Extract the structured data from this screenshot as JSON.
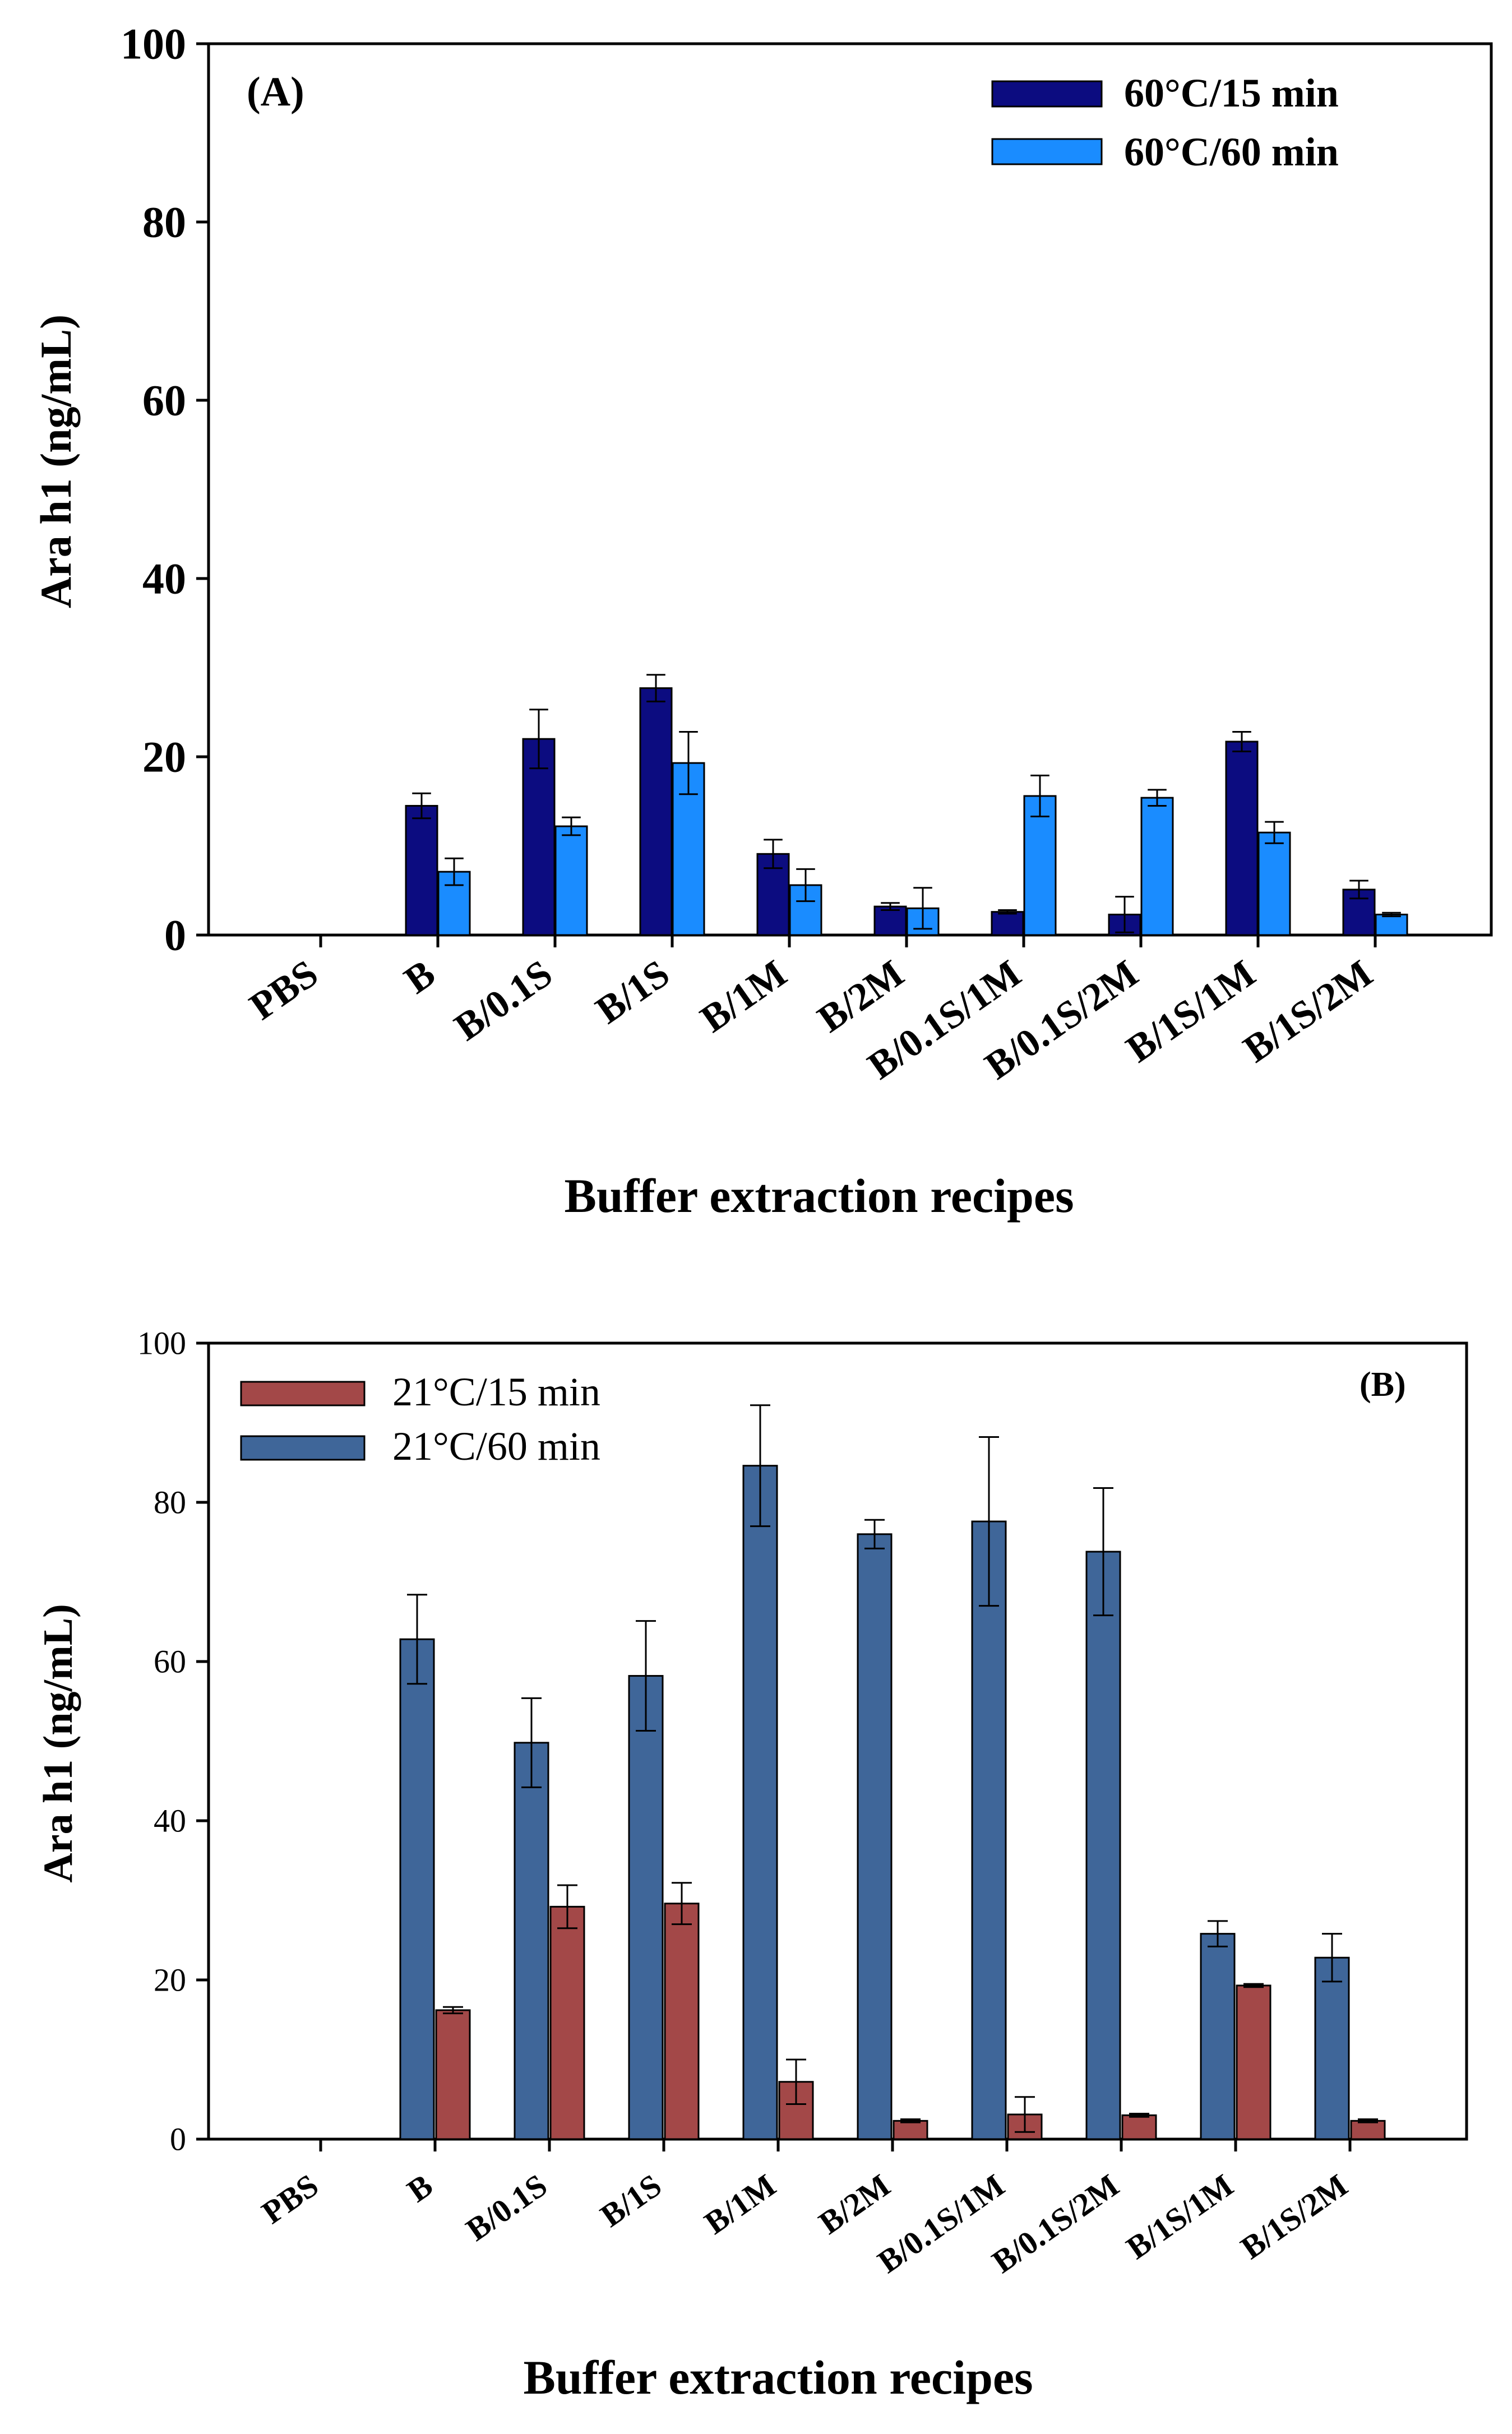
{
  "chart_data": [
    {
      "type": "bar",
      "panel_label": "(A)",
      "categories": [
        "PBS",
        "B",
        "B/0.1S",
        "B/1S",
        "B/1M",
        "B/2M",
        "B/0.1S/1M",
        "B/0.1S/2M",
        "B/1S/1M",
        "B/1S/2M"
      ],
      "series": [
        {
          "name": "60°C/15 min",
          "color": "#0c0c80",
          "values": [
            0,
            14.5,
            22.0,
            27.7,
            9.1,
            3.2,
            2.6,
            2.3,
            21.7,
            5.1
          ],
          "errors": [
            0,
            1.4,
            3.3,
            1.5,
            1.6,
            0.4,
            0.2,
            2.0,
            1.1,
            1.0
          ]
        },
        {
          "name": "60°C/60 min",
          "color": "#1a8cff",
          "values": [
            0,
            7.1,
            12.2,
            19.3,
            5.6,
            3.0,
            15.6,
            15.4,
            11.5,
            2.3
          ],
          "errors": [
            0,
            1.5,
            1.0,
            3.5,
            1.8,
            2.3,
            2.3,
            0.9,
            1.2,
            0.2
          ]
        }
      ],
      "title": "",
      "xlabel": "Buffer extraction recipes",
      "ylabel": "Ara h1 (ng/mL)",
      "ylim": [
        0,
        100
      ],
      "yticks": [
        0,
        20,
        40,
        60,
        80,
        100
      ],
      "grid": false,
      "legend_position": "top-right"
    },
    {
      "type": "bar",
      "panel_label": "(B)",
      "categories": [
        "PBS",
        "B",
        "B/0.1S",
        "B/1S",
        "B/1M",
        "B/2M",
        "B/0.1S/1M",
        "B/0.1S/2M",
        "B/1S/1M",
        "B/1S/2M"
      ],
      "series": [
        {
          "name": "21°C/15 min",
          "color": "#a34848",
          "values": [
            0,
            16.2,
            29.2,
            29.6,
            7.2,
            2.3,
            3.1,
            3.0,
            19.3,
            2.3
          ],
          "errors": [
            0,
            0.4,
            2.7,
            2.6,
            2.8,
            0.2,
            2.2,
            0.2,
            0.2,
            0.2
          ]
        },
        {
          "name": "21°C/60 min",
          "color": "#3f6699",
          "values": [
            0,
            62.8,
            49.8,
            58.2,
            84.6,
            76.0,
            77.6,
            73.8,
            25.8,
            22.8
          ],
          "errors": [
            0,
            5.6,
            5.6,
            6.9,
            7.6,
            1.8,
            10.6,
            8.0,
            1.6,
            3.0
          ]
        }
      ],
      "title": "",
      "xlabel": "Buffer extraction recipes",
      "ylabel": "Ara h1 (ng/mL)",
      "ylim": [
        0,
        100
      ],
      "yticks": [
        0,
        20,
        40,
        60,
        80,
        100
      ],
      "grid": false,
      "legend_position": "top-left"
    }
  ]
}
